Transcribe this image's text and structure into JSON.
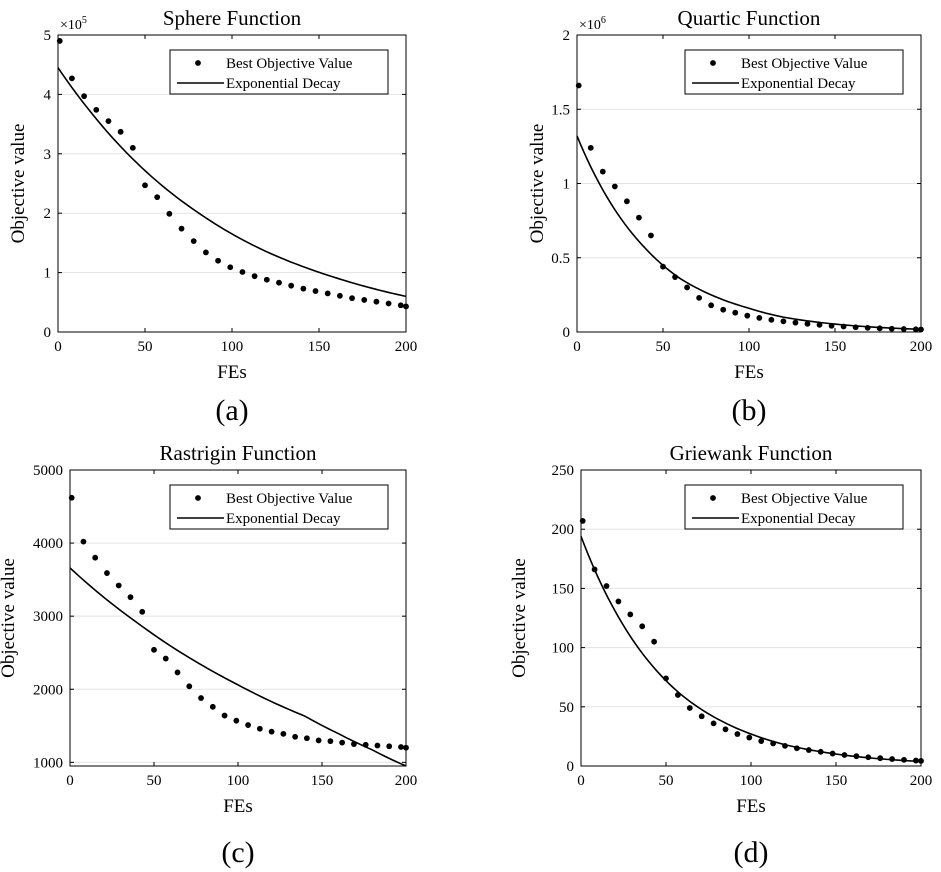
{
  "figure": {
    "panel_labels": [
      "(a)",
      "(b)",
      "(c)",
      "(d)"
    ],
    "colors": {
      "ink": "#000000",
      "grid": "#e3e3e3",
      "background": "#ffffff"
    }
  },
  "chart_data": [
    {
      "id": "a",
      "type": "scatter",
      "title": "Sphere Function",
      "xlabel": "FEs",
      "ylabel": "Objective value",
      "xlim": [
        0,
        200
      ],
      "ylim": [
        0,
        5
      ],
      "exponent_label": "×10",
      "exponent_power": "5",
      "xticks": [
        0,
        50,
        100,
        150,
        200
      ],
      "yticks": [
        0,
        1,
        2,
        3,
        4,
        5
      ],
      "ytick_labels": [
        "0",
        "1",
        "2",
        "3",
        "4",
        "5"
      ],
      "grid": "horizontal",
      "legend": {
        "position": "top-right",
        "entries": [
          "Best Objective Value",
          "Exponential Decay"
        ]
      },
      "series": [
        {
          "name": "Best Objective Value",
          "kind": "markers",
          "x": [
            1,
            8,
            15,
            22,
            29,
            36,
            43,
            50,
            57,
            64,
            71,
            78,
            85,
            92,
            99,
            106,
            113,
            120,
            127,
            134,
            141,
            148,
            155,
            162,
            169,
            176,
            183,
            190,
            197,
            200
          ],
          "y": [
            4.9,
            4.27,
            3.97,
            3.74,
            3.55,
            3.37,
            3.1,
            2.47,
            2.27,
            1.99,
            1.74,
            1.53,
            1.34,
            1.2,
            1.09,
            1.01,
            0.94,
            0.88,
            0.83,
            0.78,
            0.73,
            0.69,
            0.65,
            0.61,
            0.57,
            0.54,
            0.51,
            0.48,
            0.45,
            0.43
          ]
        },
        {
          "name": "Exponential Decay",
          "kind": "line",
          "x": [
            0,
            20,
            40,
            60,
            80,
            100,
            120,
            140,
            160,
            180,
            200
          ],
          "y": [
            4.45,
            3.66,
            3.0,
            2.46,
            2.02,
            1.65,
            1.35,
            1.11,
            0.91,
            0.74,
            0.6
          ]
        }
      ]
    },
    {
      "id": "b",
      "type": "scatter",
      "title": "Quartic Function",
      "xlabel": "FEs",
      "ylabel": "Objective value",
      "xlim": [
        0,
        200
      ],
      "ylim": [
        0,
        2
      ],
      "exponent_label": "×10",
      "exponent_power": "6",
      "xticks": [
        0,
        50,
        100,
        150,
        200
      ],
      "yticks": [
        0,
        0.5,
        1,
        1.5,
        2
      ],
      "ytick_labels": [
        "0",
        "0.5",
        "1",
        "1.5",
        "2"
      ],
      "grid": "horizontal",
      "legend": {
        "position": "top-right",
        "entries": [
          "Best Objective Value",
          "Exponential Decay"
        ]
      },
      "series": [
        {
          "name": "Best Objective Value",
          "kind": "markers",
          "x": [
            1,
            8,
            15,
            22,
            29,
            36,
            43,
            50,
            57,
            64,
            71,
            78,
            85,
            92,
            99,
            106,
            113,
            120,
            127,
            134,
            141,
            148,
            155,
            162,
            169,
            176,
            183,
            190,
            197,
            200
          ],
          "y": [
            1.66,
            1.24,
            1.08,
            0.98,
            0.88,
            0.77,
            0.65,
            0.44,
            0.37,
            0.3,
            0.23,
            0.18,
            0.15,
            0.13,
            0.11,
            0.095,
            0.082,
            0.072,
            0.063,
            0.055,
            0.048,
            0.042,
            0.037,
            0.032,
            0.028,
            0.025,
            0.022,
            0.02,
            0.018,
            0.017
          ]
        },
        {
          "name": "Exponential Decay",
          "kind": "line",
          "x": [
            0,
            20,
            40,
            60,
            80,
            100,
            120,
            140,
            160,
            180,
            200
          ],
          "y": [
            1.32,
            0.86,
            0.56,
            0.36,
            0.24,
            0.16,
            0.1,
            0.066,
            0.043,
            0.028,
            0.018
          ]
        }
      ]
    },
    {
      "id": "c",
      "type": "scatter",
      "title": "Rastrigin Function",
      "xlabel": "FEs",
      "ylabel": "Objective value",
      "xlim": [
        0,
        200
      ],
      "ylim": [
        950,
        5000
      ],
      "exponent_label": "",
      "exponent_power": "",
      "xticks": [
        0,
        50,
        100,
        150,
        200
      ],
      "yticks": [
        1000,
        2000,
        3000,
        4000,
        5000
      ],
      "ytick_labels": [
        "1000",
        "2000",
        "3000",
        "4000",
        "5000"
      ],
      "grid": "horizontal",
      "legend": {
        "position": "top-right",
        "entries": [
          "Best Objective Value",
          "Exponential Decay"
        ]
      },
      "series": [
        {
          "name": "Best Objective Value",
          "kind": "markers",
          "x": [
            1,
            8,
            15,
            22,
            29,
            36,
            43,
            50,
            57,
            64,
            71,
            78,
            85,
            92,
            99,
            106,
            113,
            120,
            127,
            134,
            141,
            148,
            155,
            162,
            169,
            176,
            183,
            190,
            197,
            200
          ],
          "y": [
            4620,
            4020,
            3800,
            3590,
            3420,
            3260,
            3060,
            2540,
            2420,
            2230,
            2040,
            1880,
            1760,
            1640,
            1570,
            1510,
            1460,
            1420,
            1390,
            1350,
            1330,
            1300,
            1290,
            1270,
            1250,
            1240,
            1230,
            1220,
            1210,
            1200
          ]
        },
        {
          "name": "Exponential Decay",
          "kind": "line",
          "x": [
            0,
            20,
            40,
            60,
            80,
            100,
            120,
            140,
            160,
            180,
            200
          ],
          "y": [
            3660,
            3260,
            2910,
            2590,
            2310,
            2060,
            1830,
            1630,
            1390,
            1170,
            950
          ]
        }
      ]
    },
    {
      "id": "d",
      "type": "scatter",
      "title": "Griewank Function",
      "xlabel": "FEs",
      "ylabel": "Objective value",
      "xlim": [
        0,
        200
      ],
      "ylim": [
        0,
        250
      ],
      "exponent_label": "",
      "exponent_power": "",
      "xticks": [
        0,
        50,
        100,
        150,
        200
      ],
      "yticks": [
        0,
        50,
        100,
        150,
        200,
        250
      ],
      "ytick_labels": [
        "0",
        "50",
        "100",
        "150",
        "200",
        "250"
      ],
      "grid": "horizontal",
      "legend": {
        "position": "top-right",
        "entries": [
          "Best Objective Value",
          "Exponential Decay"
        ]
      },
      "series": [
        {
          "name": "Best Objective Value",
          "kind": "markers",
          "x": [
            1,
            8,
            15,
            22,
            29,
            36,
            43,
            50,
            57,
            64,
            71,
            78,
            85,
            92,
            99,
            106,
            113,
            120,
            127,
            134,
            141,
            148,
            155,
            162,
            169,
            176,
            183,
            190,
            197,
            200
          ],
          "y": [
            207,
            166,
            152,
            139,
            128,
            118,
            105,
            74,
            60,
            49,
            42,
            36,
            31,
            27,
            24,
            21,
            19,
            17,
            15,
            13.5,
            12,
            10.5,
            9.3,
            8.3,
            7.4,
            6.6,
            5.9,
            5.2,
            4.6,
            4.3
          ]
        },
        {
          "name": "Exponential Decay",
          "kind": "line",
          "x": [
            0,
            20,
            40,
            60,
            80,
            100,
            120,
            140,
            160,
            180,
            200
          ],
          "y": [
            194,
            131,
            88,
            59,
            40,
            27,
            18,
            12.3,
            8.3,
            5.6,
            3.8
          ]
        }
      ]
    }
  ]
}
